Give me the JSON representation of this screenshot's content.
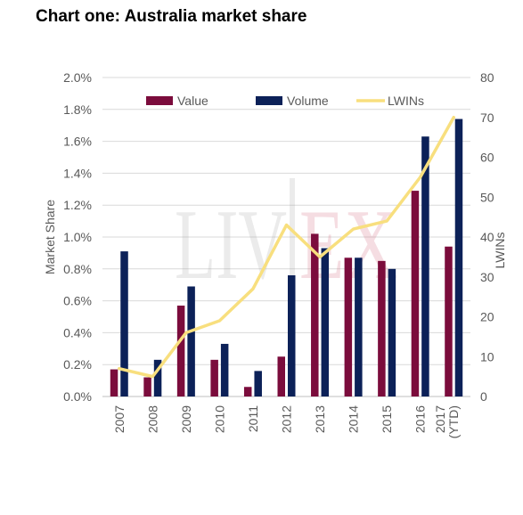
{
  "chart_data": {
    "type": "bar+line",
    "title": "Chart one: Australia market share",
    "categories": [
      "2007",
      "2008",
      "2009",
      "2010",
      "2011",
      "2012",
      "2013",
      "2014",
      "2015",
      "2016",
      "2017 (YTD)"
    ],
    "category_lines": [
      [
        "2007"
      ],
      [
        "2008"
      ],
      [
        "2009"
      ],
      [
        "2010"
      ],
      [
        "2011"
      ],
      [
        "2012"
      ],
      [
        "2013"
      ],
      [
        "2014"
      ],
      [
        "2015"
      ],
      [
        "2016"
      ],
      [
        "2017",
        "(YTD)"
      ]
    ],
    "series": [
      {
        "name": "Value",
        "type": "bar",
        "axis": "left",
        "color": "#7b0c3c",
        "values": [
          0.17,
          0.12,
          0.57,
          0.23,
          0.06,
          0.25,
          1.02,
          0.87,
          0.85,
          1.29,
          0.94
        ]
      },
      {
        "name": "Volume",
        "type": "bar",
        "axis": "left",
        "color": "#0c2158",
        "values": [
          0.91,
          0.23,
          0.69,
          0.33,
          0.16,
          0.76,
          0.93,
          0.87,
          0.8,
          1.63,
          1.74
        ]
      },
      {
        "name": "LWINs",
        "type": "line",
        "axis": "right",
        "color": "#f8df7e",
        "values": [
          7,
          5,
          16,
          19,
          27,
          43,
          35,
          42,
          44,
          55,
          70
        ]
      }
    ],
    "ylabel": "Market Share",
    "y2label": "LWINs",
    "ylim": [
      0,
      0.02
    ],
    "y2lim": [
      0,
      80
    ],
    "yticks": [
      "0.0%",
      "0.2%",
      "0.4%",
      "0.6%",
      "0.8%",
      "1.0%",
      "1.2%",
      "1.4%",
      "1.6%",
      "1.8%",
      "2.0%"
    ],
    "y2ticks": [
      "0",
      "10",
      "20",
      "30",
      "40",
      "50",
      "60",
      "70",
      "80"
    ],
    "grid": true,
    "legend": "top",
    "watermark": "LIV-EX"
  }
}
